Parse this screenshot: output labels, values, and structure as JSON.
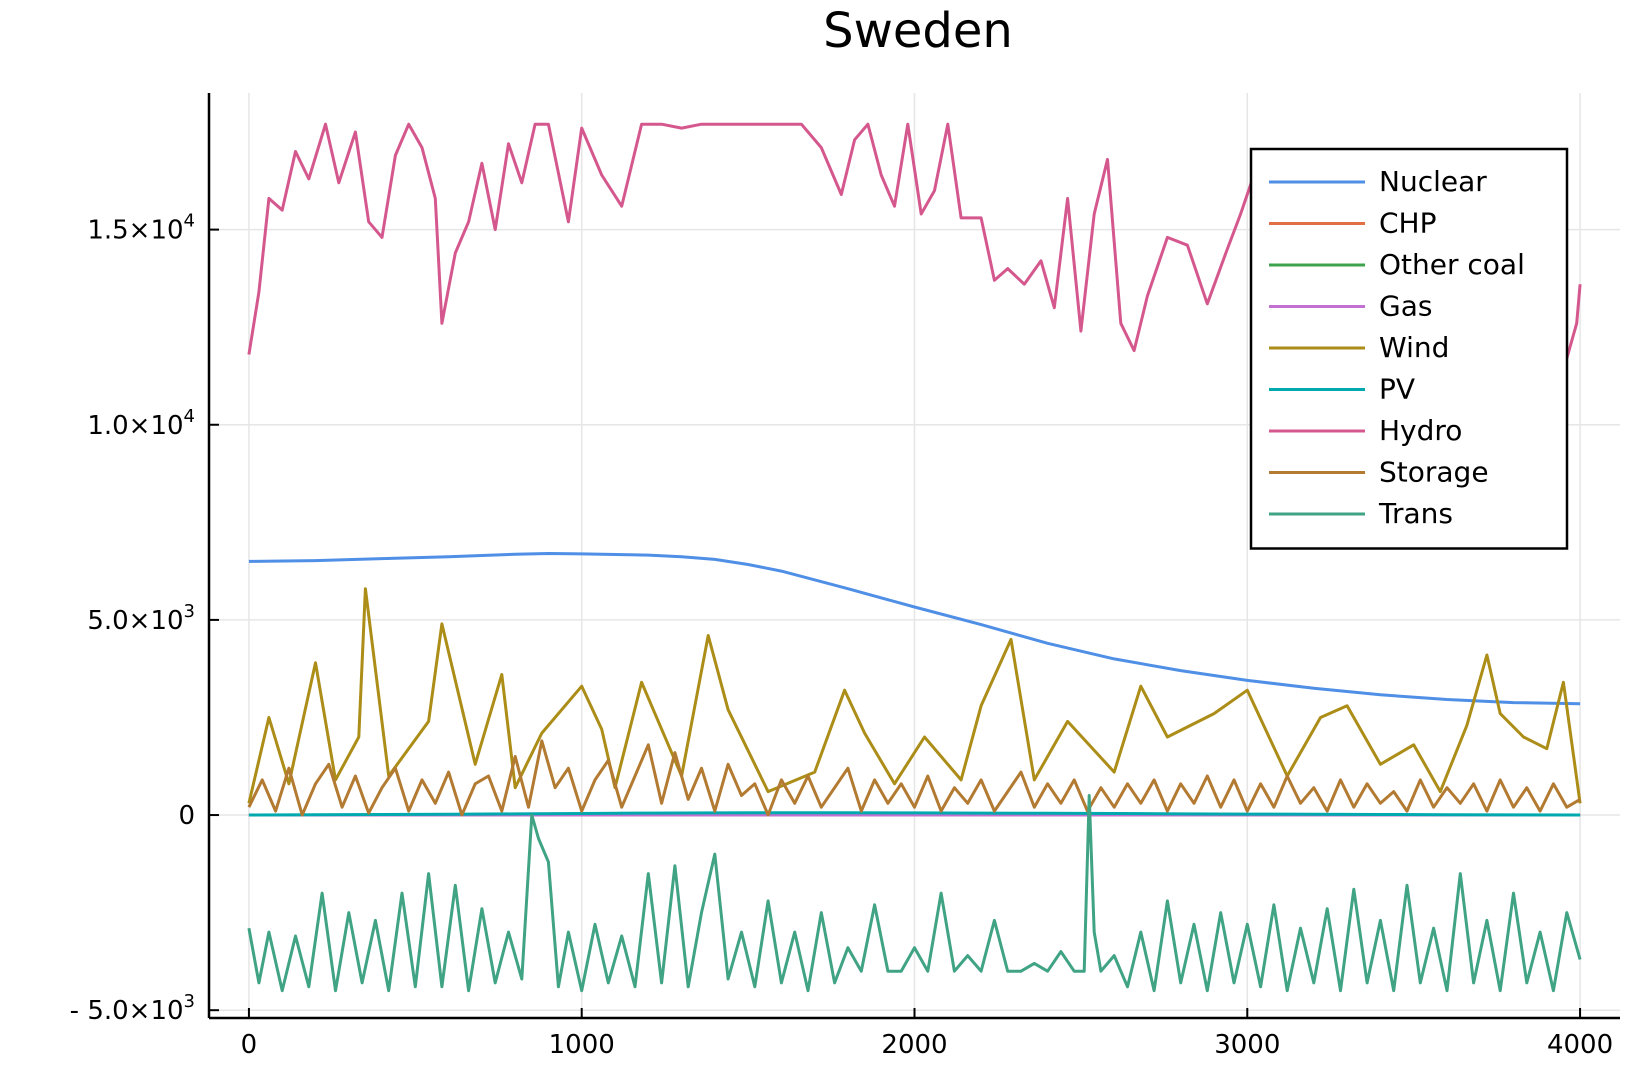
{
  "chart_data": {
    "type": "line",
    "title": "Sweden",
    "xlabel": "",
    "ylabel": "",
    "xlim": [
      -120,
      4120
    ],
    "ylim": [
      -5200,
      18500
    ],
    "grid": true,
    "legend_position": "top-right",
    "x_ticks": [
      {
        "value": 0,
        "label": "0"
      },
      {
        "value": 1000,
        "label": "1000"
      },
      {
        "value": 2000,
        "label": "2000"
      },
      {
        "value": 3000,
        "label": "3000"
      },
      {
        "value": 4000,
        "label": "4000"
      }
    ],
    "y_ticks": [
      {
        "value": -5000,
        "mantissa": "- 5.0×10",
        "exponent": "3"
      },
      {
        "value": 0,
        "mantissa": "0",
        "exponent": ""
      },
      {
        "value": 5000,
        "mantissa": "5.0×10",
        "exponent": "3"
      },
      {
        "value": 10000,
        "mantissa": "1.0×10",
        "exponent": "4"
      },
      {
        "value": 15000,
        "mantissa": "1.5×10",
        "exponent": "4"
      }
    ],
    "series": [
      {
        "name": "Nuclear",
        "color": "#4f8fe6",
        "x": [
          0,
          200,
          400,
          600,
          800,
          900,
          1000,
          1200,
          1300,
          1400,
          1500,
          1600,
          1800,
          2000,
          2200,
          2400,
          2600,
          2800,
          3000,
          3200,
          3400,
          3600,
          3800,
          4000
        ],
        "y": [
          6500,
          6520,
          6570,
          6620,
          6680,
          6700,
          6690,
          6660,
          6620,
          6550,
          6420,
          6250,
          5800,
          5330,
          4880,
          4400,
          4000,
          3700,
          3450,
          3250,
          3080,
          2960,
          2880,
          2850
        ]
      },
      {
        "name": "CHP",
        "color": "#e26f46",
        "x": [
          0,
          200,
          400,
          600,
          800,
          1000,
          1200,
          1400,
          1600,
          1800,
          2000,
          2200,
          2400,
          2600,
          2800,
          3000,
          3200,
          3400,
          3600,
          3800,
          4000
        ],
        "y": [
          0,
          0,
          0,
          0,
          0,
          0,
          0,
          0,
          0,
          0,
          0,
          0,
          0,
          0,
          0,
          0,
          0,
          0,
          0,
          0,
          0
        ]
      },
      {
        "name": "Other coal",
        "color": "#3da44d",
        "x": [
          0,
          200,
          400,
          600,
          800,
          1000,
          1200,
          1400,
          1600,
          1800,
          2000,
          2200,
          2400,
          2600,
          2800,
          3000,
          3200,
          3400,
          3600,
          3800,
          4000
        ],
        "y": [
          0,
          0,
          0,
          0,
          0,
          0,
          0,
          0,
          0,
          0,
          0,
          0,
          0,
          0,
          0,
          0,
          0,
          0,
          0,
          0,
          0
        ]
      },
      {
        "name": "Gas",
        "color": "#c271d2",
        "x": [
          0,
          200,
          400,
          600,
          800,
          1000,
          1200,
          1400,
          1600,
          1800,
          2000,
          2200,
          2400,
          2600,
          2800,
          3000,
          3200,
          3400,
          3600,
          3800,
          4000
        ],
        "y": [
          0,
          0,
          0,
          0,
          0,
          0,
          0,
          0,
          0,
          0,
          0,
          0,
          0,
          0,
          0,
          0,
          0,
          0,
          0,
          0,
          0
        ]
      },
      {
        "name": "Wind",
        "color": "#ac8d18",
        "x": [
          0,
          60,
          120,
          200,
          260,
          330,
          350,
          420,
          540,
          580,
          680,
          760,
          800,
          880,
          1000,
          1060,
          1100,
          1180,
          1300,
          1380,
          1440,
          1560,
          1700,
          1790,
          1850,
          1940,
          2030,
          2140,
          2200,
          2290,
          2360,
          2460,
          2600,
          2680,
          2760,
          2900,
          3000,
          3120,
          3220,
          3300,
          3400,
          3500,
          3580,
          3660,
          3720,
          3760,
          3830,
          3900,
          3950,
          4000
        ],
        "y": [
          300,
          2500,
          800,
          3900,
          900,
          2000,
          5800,
          1000,
          2400,
          4900,
          1300,
          3600,
          700,
          2100,
          3300,
          2200,
          700,
          3400,
          1000,
          4600,
          2700,
          600,
          1100,
          3200,
          2100,
          800,
          2000,
          900,
          2800,
          4500,
          900,
          2400,
          1100,
          3300,
          2000,
          2600,
          3200,
          1000,
          2500,
          2800,
          1300,
          1800,
          600,
          2300,
          4100,
          2600,
          2000,
          1700,
          3400,
          300
        ]
      },
      {
        "name": "PV",
        "color": "#00a9ad",
        "x": [
          0,
          200,
          400,
          600,
          800,
          1000,
          1200,
          1400,
          1600,
          1800,
          2000,
          2200,
          2400,
          2600,
          2800,
          3000,
          3200,
          3400,
          3600,
          3800,
          4000
        ],
        "y": [
          0,
          10,
          15,
          20,
          30,
          40,
          50,
          55,
          60,
          60,
          55,
          50,
          45,
          40,
          30,
          25,
          20,
          15,
          10,
          5,
          0
        ]
      },
      {
        "name": "Hydro",
        "color": "#d4588d",
        "x": [
          0,
          30,
          60,
          100,
          140,
          180,
          230,
          270,
          320,
          360,
          400,
          440,
          480,
          520,
          560,
          580,
          620,
          660,
          700,
          740,
          780,
          820,
          860,
          900,
          960,
          1000,
          1060,
          1120,
          1180,
          1240,
          1300,
          1360,
          1420,
          1480,
          1540,
          1600,
          1660,
          1720,
          1780,
          1820,
          1860,
          1900,
          1940,
          1980,
          2020,
          2060,
          2100,
          2140,
          2200,
          2240,
          2280,
          2330,
          2380,
          2420,
          2460,
          2500,
          2540,
          2580,
          2620,
          2660,
          2700,
          2760,
          2820,
          2880,
          2940,
          2980,
          3020,
          3060,
          3120,
          3180,
          3240,
          3300,
          3360,
          3420,
          3480,
          3540,
          3600,
          3660,
          3720,
          3780,
          3840,
          3900,
          3960,
          3990,
          4000
        ],
        "y": [
          11800,
          13400,
          15800,
          15500,
          17000,
          16300,
          17700,
          16200,
          17500,
          15200,
          14800,
          16900,
          17700,
          17100,
          15800,
          12600,
          14400,
          15200,
          16700,
          15000,
          17200,
          16200,
          17700,
          17700,
          15200,
          17600,
          16400,
          15600,
          17700,
          17700,
          17600,
          17700,
          17700,
          17700,
          17700,
          17700,
          17700,
          17100,
          15900,
          17300,
          17700,
          16400,
          15600,
          17700,
          15400,
          16000,
          17700,
          15300,
          15300,
          13700,
          14000,
          13600,
          14200,
          13000,
          15800,
          12400,
          15400,
          16800,
          12600,
          11900,
          13300,
          14800,
          14600,
          13100,
          14500,
          15400,
          16400,
          12300,
          14300,
          15100,
          13400,
          12800,
          13900,
          13300,
          15000,
          12700,
          13200,
          14900,
          13700,
          13800,
          12400,
          13300,
          11700,
          12600,
          13600
        ]
      },
      {
        "name": "Storage",
        "color": "#b37a32",
        "x": [
          0,
          40,
          80,
          120,
          160,
          200,
          240,
          280,
          320,
          360,
          400,
          440,
          480,
          520,
          560,
          600,
          640,
          680,
          720,
          760,
          800,
          840,
          880,
          920,
          960,
          1000,
          1040,
          1080,
          1120,
          1160,
          1200,
          1240,
          1280,
          1320,
          1360,
          1400,
          1440,
          1480,
          1520,
          1560,
          1600,
          1640,
          1680,
          1720,
          1760,
          1800,
          1840,
          1880,
          1920,
          1960,
          2000,
          2040,
          2080,
          2120,
          2160,
          2200,
          2240,
          2280,
          2320,
          2360,
          2400,
          2440,
          2480,
          2520,
          2560,
          2600,
          2640,
          2680,
          2720,
          2760,
          2800,
          2840,
          2880,
          2920,
          2960,
          3000,
          3040,
          3080,
          3120,
          3160,
          3200,
          3240,
          3280,
          3320,
          3360,
          3400,
          3440,
          3480,
          3520,
          3560,
          3600,
          3640,
          3680,
          3720,
          3760,
          3800,
          3840,
          3880,
          3920,
          3960,
          4000
        ],
        "y": [
          200,
          900,
          100,
          1200,
          0,
          800,
          1300,
          200,
          1000,
          50,
          700,
          1200,
          100,
          900,
          300,
          1100,
          0,
          800,
          1000,
          100,
          1500,
          200,
          1900,
          700,
          1200,
          100,
          900,
          1400,
          200,
          1000,
          1800,
          300,
          1600,
          400,
          1200,
          100,
          1300,
          500,
          800,
          0,
          900,
          300,
          1000,
          200,
          700,
          1200,
          100,
          900,
          300,
          800,
          200,
          1000,
          100,
          700,
          300,
          900,
          100,
          600,
          1100,
          200,
          800,
          300,
          900,
          100,
          700,
          200,
          800,
          300,
          900,
          100,
          800,
          300,
          1000,
          200,
          900,
          100,
          800,
          200,
          1000,
          300,
          700,
          100,
          900,
          200,
          800,
          300,
          600,
          100,
          900,
          200,
          700,
          300,
          800,
          100,
          900,
          200,
          700,
          100,
          800,
          200,
          400
        ]
      },
      {
        "name": "Trans",
        "color": "#3fa384",
        "x": [
          0,
          30,
          60,
          100,
          140,
          180,
          220,
          260,
          300,
          340,
          380,
          420,
          460,
          500,
          540,
          580,
          620,
          660,
          700,
          740,
          780,
          820,
          850,
          870,
          900,
          930,
          960,
          1000,
          1040,
          1080,
          1120,
          1160,
          1200,
          1240,
          1280,
          1320,
          1360,
          1400,
          1440,
          1480,
          1520,
          1560,
          1600,
          1640,
          1680,
          1720,
          1760,
          1800,
          1840,
          1880,
          1920,
          1960,
          2000,
          2040,
          2080,
          2120,
          2160,
          2200,
          2240,
          2280,
          2320,
          2360,
          2400,
          2440,
          2480,
          2510,
          2525,
          2540,
          2560,
          2600,
          2640,
          2680,
          2720,
          2760,
          2800,
          2840,
          2880,
          2920,
          2960,
          3000,
          3040,
          3080,
          3120,
          3160,
          3200,
          3240,
          3280,
          3320,
          3360,
          3400,
          3440,
          3480,
          3520,
          3560,
          3600,
          3640,
          3680,
          3720,
          3760,
          3800,
          3840,
          3880,
          3920,
          3960,
          4000
        ],
        "y": [
          -2900,
          -4300,
          -3000,
          -4500,
          -3100,
          -4400,
          -2000,
          -4500,
          -2500,
          -4300,
          -2700,
          -4500,
          -2000,
          -4400,
          -1500,
          -4400,
          -1800,
          -4500,
          -2400,
          -4300,
          -3000,
          -4200,
          0,
          -600,
          -1200,
          -4400,
          -3000,
          -4500,
          -2800,
          -4300,
          -3100,
          -4400,
          -1500,
          -4300,
          -1300,
          -4400,
          -2500,
          -1000,
          -4200,
          -3000,
          -4400,
          -2200,
          -4300,
          -3000,
          -4500,
          -2500,
          -4300,
          -3400,
          -4000,
          -2300,
          -4000,
          -4000,
          -3400,
          -4000,
          -2000,
          -4000,
          -3600,
          -4000,
          -2700,
          -4000,
          -4000,
          -3800,
          -4000,
          -3500,
          -4000,
          -4000,
          500,
          -3000,
          -4000,
          -3600,
          -4400,
          -3000,
          -4500,
          -2200,
          -4300,
          -2800,
          -4500,
          -2500,
          -4300,
          -2800,
          -4400,
          -2300,
          -4500,
          -2900,
          -4300,
          -2400,
          -4500,
          -1900,
          -4300,
          -2700,
          -4500,
          -1800,
          -4300,
          -2900,
          -4500,
          -1500,
          -4300,
          -2700,
          -4500,
          -2000,
          -4300,
          -3000,
          -4500,
          -2500,
          -3700
        ]
      }
    ]
  }
}
